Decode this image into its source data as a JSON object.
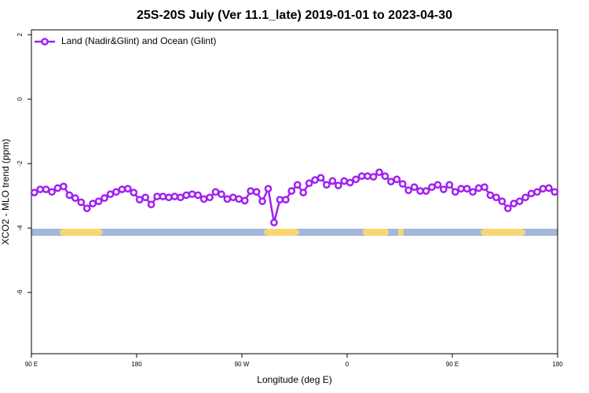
{
  "chart_data": {
    "type": "line",
    "title": "25S-20S July (Ver 11.1_late)   2019-01-01 to 2023-04-30",
    "x_label": "Longitude (deg E)",
    "y_label": "XCO2 - MLO trend (ppm)",
    "x": [
      92.5,
      97.5,
      102.5,
      107.5,
      112.5,
      117.5,
      122.5,
      127.5,
      132.5,
      137.5,
      142.5,
      147.5,
      152.5,
      157.5,
      162.5,
      167.5,
      172.5,
      177.5,
      182.5,
      187.5,
      192.5,
      197.5,
      202.5,
      207.5,
      212.5,
      217.5,
      222.5,
      227.5,
      232.5,
      237.5,
      242.5,
      247.5,
      252.5,
      257.5,
      262.5,
      267.5,
      272.5,
      277.5,
      282.5,
      287.5,
      292.5,
      297.5,
      302.5,
      307.5,
      312.5,
      317.5,
      322.5,
      327.5,
      332.5,
      337.5,
      342.5,
      347.5,
      352.5,
      357.5,
      362.5,
      367.5,
      372.5,
      377.5,
      382.5,
      387.5,
      392.5,
      397.5,
      402.5,
      407.5,
      412.5,
      417.5,
      422.5,
      427.5,
      432.5,
      437.5,
      442.5,
      447.5,
      452.5,
      457.5,
      462.5,
      467.5,
      472.5,
      477.5,
      482.5,
      487.5,
      492.5,
      497.5,
      502.5,
      507.5,
      512.5,
      517.5,
      522.5,
      527.5,
      532.5,
      537.5
    ],
    "series": [
      {
        "name": "Land (Nadir&Glint) and Ocean (Glint)",
        "color": "#a020f0",
        "values": [
          -2.9,
          -2.8,
          -2.8,
          -2.88,
          -2.76,
          -2.71,
          -2.98,
          -3.07,
          -3.2,
          -3.39,
          -3.24,
          -3.17,
          -3.07,
          -2.95,
          -2.88,
          -2.8,
          -2.78,
          -2.9,
          -3.12,
          -3.05,
          -3.27,
          -3.02,
          -3.02,
          -3.05,
          -3.02,
          -3.05,
          -2.98,
          -2.95,
          -2.98,
          -3.1,
          -3.05,
          -2.88,
          -2.95,
          -3.1,
          -3.05,
          -3.1,
          -3.15,
          -2.85,
          -2.88,
          -3.17,
          -2.78,
          -3.83,
          -3.12,
          -3.12,
          -2.85,
          -2.66,
          -2.9,
          -2.61,
          -2.51,
          -2.44,
          -2.66,
          -2.54,
          -2.68,
          -2.54,
          -2.59,
          -2.49,
          -2.39,
          -2.39,
          -2.41,
          -2.27,
          -2.39,
          -2.56,
          -2.49,
          -2.63,
          -2.83,
          -2.73,
          -2.85,
          -2.85,
          -2.73,
          -2.66,
          -2.8,
          -2.66,
          -2.88,
          -2.78,
          -2.78,
          -2.88,
          -2.76,
          -2.73,
          -2.98,
          -3.05,
          -3.17,
          -3.39,
          -3.24,
          -3.17,
          -3.05,
          -2.93,
          -2.88,
          -2.78,
          -2.76,
          -2.88
        ]
      }
    ],
    "xlim": [
      90,
      540
    ],
    "xticks": [
      {
        "value": 90,
        "label": "90 E"
      },
      180,
      {
        "value": 270,
        "label": "90 W"
      },
      {
        "value": 360,
        "label": "0"
      },
      {
        "value": 450,
        "label": "90 E"
      },
      {
        "value": 540,
        "label": "180"
      }
    ],
    "ylim": [
      -7.9,
      2.15
    ],
    "yticks": [
      2,
      0,
      -2,
      -4,
      -6
    ],
    "legend": "top-left"
  }
}
